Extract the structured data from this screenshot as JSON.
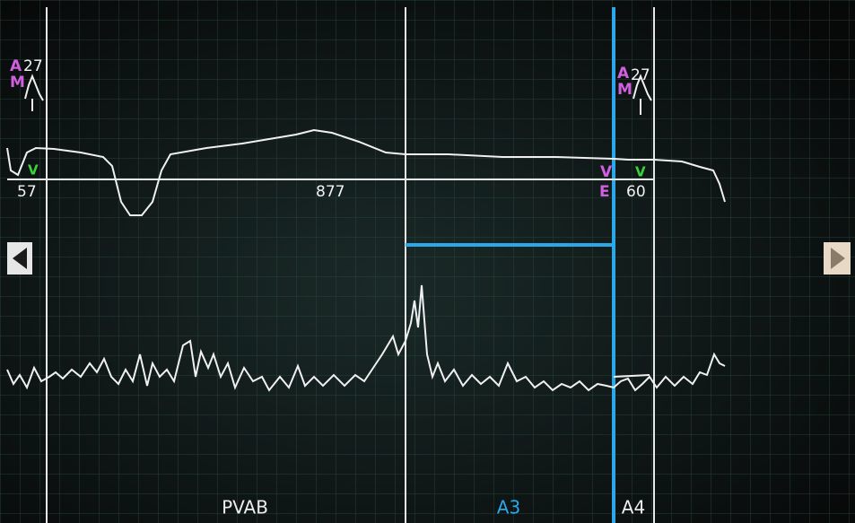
{
  "markers": [
    {
      "top": "A",
      "bottom": "M",
      "value": "27"
    },
    {
      "top": "A",
      "bottom": "M",
      "value": "27"
    }
  ],
  "sense_marks": {
    "left": "V",
    "right_upper": "V",
    "right_lower": "E",
    "right": "V"
  },
  "intervals": {
    "left": "57",
    "middle": "877",
    "right": "60"
  },
  "zones": [
    "PVAB",
    "A3",
    "A4"
  ]
}
